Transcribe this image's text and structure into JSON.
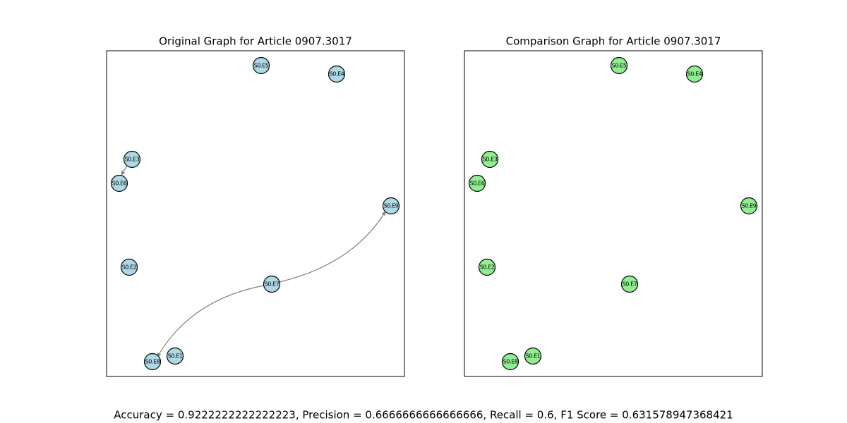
{
  "panels": [
    {
      "title": "Original Graph for Article 0907.3017",
      "nodes": [
        "S0.E5",
        "S0.E4",
        "S0.E3",
        "S0.E6",
        "S0.E9",
        "S0.E2",
        "S0.E7",
        "S0.E1",
        "S0.E8"
      ]
    },
    {
      "title": "Comparison Graph for Article 0907.3017",
      "nodes": [
        "S0.E5",
        "S0.E4",
        "S0.E3",
        "S0.E6",
        "S0.E9",
        "S0.E2",
        "S0.E7",
        "S0.E1",
        "S0.E8"
      ]
    }
  ],
  "footer": "Accuracy = 0.9222222222222223, Precision = 0.6666666666666666, Recall = 0.6, F1 Score = 0.631578947368421"
}
